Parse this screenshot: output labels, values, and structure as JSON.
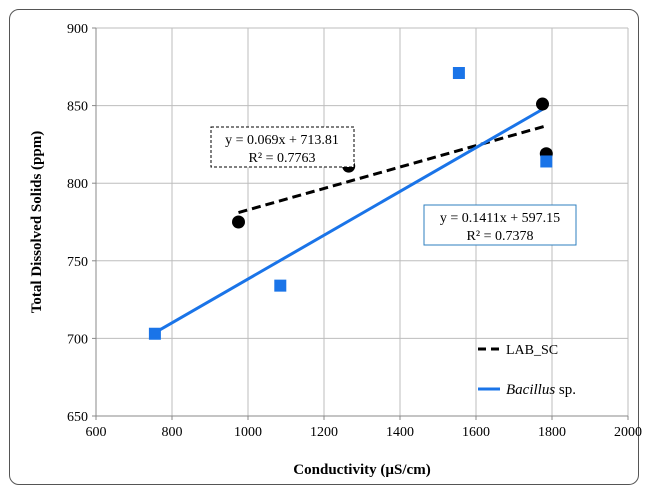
{
  "chart_data": {
    "type": "scatter",
    "xlabel": "Conductivity (µS/cm)",
    "ylabel": "Total Dissolved Solids (ppm)",
    "xlim": [
      600,
      2000
    ],
    "ylim": [
      650,
      900
    ],
    "x_ticks": [
      600,
      800,
      1000,
      1200,
      1400,
      1600,
      1800,
      2000
    ],
    "y_ticks": [
      650,
      700,
      750,
      800,
      850,
      900
    ],
    "grid": true,
    "legend_position": "bottom-right",
    "series": [
      {
        "name": "LAB_SC",
        "marker": "circle",
        "color": "#000000",
        "x": [
          975,
          1265,
          1775,
          1785
        ],
        "y": [
          775,
          811,
          851,
          819
        ],
        "trendline": {
          "style": "dashed",
          "slope": 0.069,
          "intercept": 713.81,
          "x_range": [
            975,
            1785
          ],
          "equation": "y = 0.069x + 713.81",
          "r2": "R² = 0.7763"
        }
      },
      {
        "name_italic": "Bacillus",
        "name_rest": " sp.",
        "marker": "square",
        "color": "#1a74e8",
        "x": [
          755,
          1085,
          1555,
          1785
        ],
        "y": [
          703,
          734,
          871,
          814
        ],
        "trendline": {
          "style": "solid",
          "slope": 0.1411,
          "intercept": 597.15,
          "x_range": [
            755,
            1785
          ],
          "equation": "y = 0.1411x + 597.15",
          "r2": "R² = 0.7378"
        }
      }
    ]
  }
}
